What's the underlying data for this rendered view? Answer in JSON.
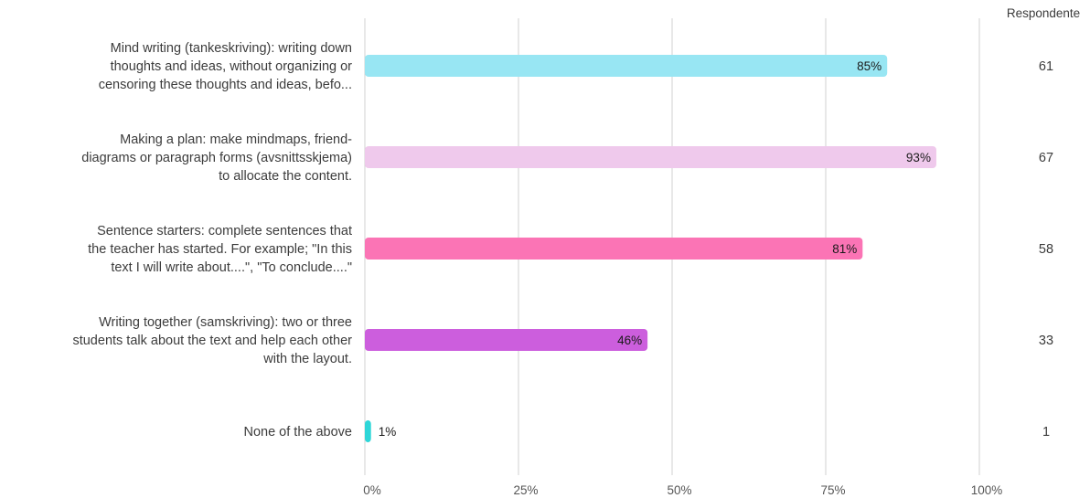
{
  "chart_data": {
    "type": "bar",
    "orientation": "horizontal",
    "categories": [
      [
        "Mind writing (tankeskriving): writing down",
        "thoughts and ideas, without organizing or",
        "censoring these thoughts and ideas, befo..."
      ],
      [
        "Making a plan: make mindmaps, friend-",
        "diagrams or paragraph forms (avsnittsskjema)",
        "to allocate the content."
      ],
      [
        "Sentence starters: complete sentences that",
        "the teacher has started. For example; \"In this",
        "text I will write about....\", \"To conclude....\""
      ],
      [
        "Writing together (samskriving): two or three",
        "students talk about the text and help each other",
        "with the layout."
      ],
      [
        "None of the above"
      ]
    ],
    "values": [
      85,
      93,
      81,
      46,
      1
    ],
    "value_labels": [
      "85%",
      "93%",
      "81%",
      "46%",
      "1%"
    ],
    "colors": [
      "#98e6f3",
      "#efc9ec",
      "#fb74b5",
      "#cc5edd",
      "#2ed6d8"
    ],
    "respondents_header": "Respondente",
    "respondents": [
      "61",
      "67",
      "58",
      "33",
      "1"
    ],
    "xlim": [
      0,
      100
    ],
    "x_ticks": [
      0,
      25,
      50,
      75,
      100
    ],
    "x_tick_labels": [
      "0%",
      "25%",
      "50%",
      "75%",
      "100%"
    ],
    "grid": true,
    "title": "",
    "xlabel": "",
    "ylabel": ""
  }
}
